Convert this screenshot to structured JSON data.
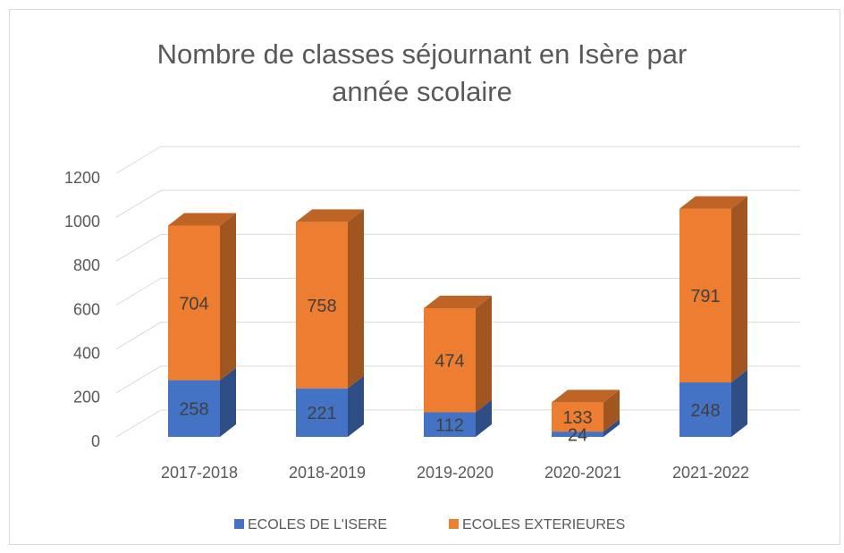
{
  "chart_data": {
    "type": "bar",
    "stacked": true,
    "title": "Nombre de classes séjournant en Isère par année scolaire",
    "categories": [
      "2017-2018",
      "2018-2019",
      "2019-2020",
      "2020-2021",
      "2021-2022"
    ],
    "series": [
      {
        "name": "ECOLES DE L'ISERE",
        "color": "#4472c4",
        "values": [
          258,
          221,
          112,
          24,
          248
        ]
      },
      {
        "name": "ECOLES EXTERIEURES",
        "color": "#ed7d31",
        "values": [
          704,
          758,
          474,
          133,
          791
        ]
      }
    ],
    "ylim": [
      0,
      1200
    ],
    "yticks": [
      0,
      200,
      400,
      600,
      800,
      1000,
      1200
    ],
    "grid": true,
    "legend": "bottom"
  }
}
